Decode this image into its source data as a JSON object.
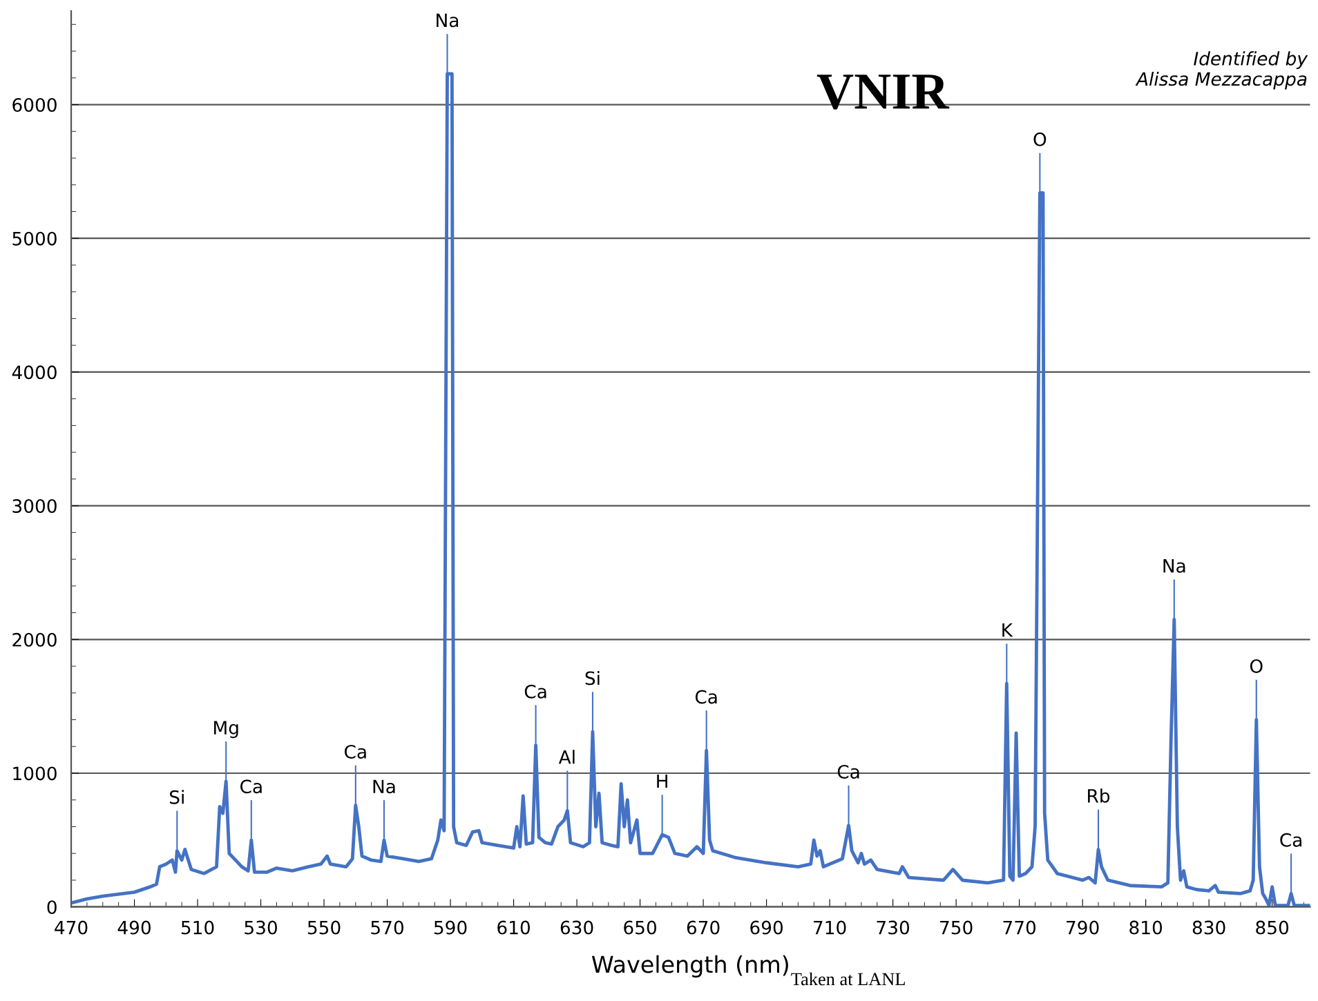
{
  "chart_data": {
    "type": "line",
    "title": "VNIR",
    "xlabel": "Wavelength (nm)",
    "xlim": [
      470,
      862
    ],
    "ylim": [
      0,
      6700
    ],
    "xticks": [
      470,
      490,
      510,
      530,
      550,
      570,
      590,
      610,
      630,
      650,
      670,
      690,
      710,
      730,
      750,
      770,
      790,
      810,
      830,
      850
    ],
    "yticks": [
      0,
      1000,
      2000,
      3000,
      4000,
      5000,
      6000
    ],
    "grid": "y",
    "legend": false,
    "marker": "none",
    "line_style": "solid",
    "series": [
      {
        "color": "#4472c4",
        "x": [
          470,
          475,
          480,
          490,
          495,
          497,
          498,
          500,
          502,
          503,
          503.5,
          505,
          506,
          508,
          512,
          516,
          517,
          518,
          519,
          520,
          522,
          524,
          526,
          527,
          528,
          532,
          535,
          540,
          545,
          549,
          551,
          552,
          557,
          559,
          560,
          561,
          562,
          565,
          568,
          569,
          570,
          575,
          580,
          584,
          586,
          587,
          588,
          589,
          590.5,
          591,
          592,
          595,
          597,
          599,
          600,
          605,
          610,
          611,
          612,
          613,
          614,
          616,
          617,
          618,
          620,
          622,
          624,
          626,
          627,
          628,
          632,
          634,
          635,
          636,
          637,
          638,
          641,
          643,
          644,
          645,
          646,
          647,
          649,
          650,
          654,
          657,
          659,
          661,
          665,
          668,
          670,
          671,
          672,
          673,
          680,
          690,
          700,
          704,
          705,
          706,
          707,
          708,
          714,
          716,
          717,
          719,
          720,
          721,
          723,
          725,
          732,
          733,
          735,
          746,
          749,
          752,
          760,
          765,
          766,
          767,
          768,
          769,
          770,
          772,
          774,
          775,
          776.5,
          777.5,
          778,
          779,
          782,
          790,
          792,
          794,
          795,
          796,
          798,
          805,
          815,
          817,
          818,
          819,
          820,
          821,
          822,
          823,
          826,
          830,
          832,
          833,
          840,
          843,
          844,
          845,
          846,
          847,
          848,
          849,
          850,
          851,
          855,
          856,
          857,
          862
        ],
        "values": [
          30,
          60,
          80,
          110,
          150,
          170,
          300,
          320,
          350,
          260,
          420,
          350,
          430,
          280,
          250,
          300,
          750,
          700,
          940,
          400,
          350,
          300,
          270,
          500,
          260,
          260,
          290,
          270,
          300,
          320,
          380,
          320,
          300,
          360,
          760,
          600,
          380,
          350,
          340,
          500,
          380,
          360,
          340,
          360,
          500,
          650,
          570,
          6230,
          6230,
          600,
          480,
          460,
          560,
          570,
          480,
          460,
          440,
          600,
          450,
          830,
          470,
          480,
          1210,
          520,
          480,
          470,
          600,
          650,
          720,
          480,
          450,
          480,
          1310,
          600,
          850,
          480,
          460,
          450,
          920,
          600,
          800,
          480,
          650,
          400,
          400,
          540,
          520,
          400,
          380,
          450,
          400,
          1170,
          500,
          420,
          370,
          330,
          300,
          320,
          500,
          380,
          420,
          300,
          360,
          610,
          420,
          330,
          400,
          320,
          350,
          280,
          250,
          300,
          220,
          200,
          280,
          200,
          180,
          200,
          1670,
          230,
          200,
          1300,
          230,
          250,
          300,
          600,
          5340,
          5340,
          700,
          350,
          250,
          200,
          220,
          180,
          430,
          300,
          200,
          160,
          150,
          180,
          1250,
          2150,
          600,
          200,
          270,
          150,
          130,
          120,
          160,
          110,
          100,
          120,
          200,
          1400,
          300,
          100,
          60,
          10,
          150,
          10,
          10,
          100,
          10,
          10
        ]
      }
    ],
    "annotations": [
      {
        "text": "Si",
        "x": 503.5,
        "y": 420
      },
      {
        "text": "Mg",
        "x": 519,
        "y": 940
      },
      {
        "text": "Ca",
        "x": 527,
        "y": 500
      },
      {
        "text": "Ca",
        "x": 560,
        "y": 760
      },
      {
        "text": "Na",
        "x": 569,
        "y": 500
      },
      {
        "text": "Na",
        "x": 589,
        "y": 6230
      },
      {
        "text": "Ca",
        "x": 617,
        "y": 1210
      },
      {
        "text": "Al",
        "x": 627,
        "y": 720
      },
      {
        "text": "Si",
        "x": 635,
        "y": 1310
      },
      {
        "text": "Ca",
        "x": 671,
        "y": 1170
      },
      {
        "text": "H",
        "x": 657,
        "y": 540
      },
      {
        "text": "Ca",
        "x": 716,
        "y": 610
      },
      {
        "text": "K",
        "x": 766,
        "y": 1670
      },
      {
        "text": "O",
        "x": 776.5,
        "y": 5340
      },
      {
        "text": "Rb",
        "x": 795,
        "y": 430
      },
      {
        "text": "Na",
        "x": 819,
        "y": 2150
      },
      {
        "text": "O",
        "x": 845,
        "y": 1400
      },
      {
        "text": "Ca",
        "x": 856,
        "y": 100
      },
      "Identified by\nAlissa Mezzacappa",
      "Taken at LANL"
    ]
  }
}
